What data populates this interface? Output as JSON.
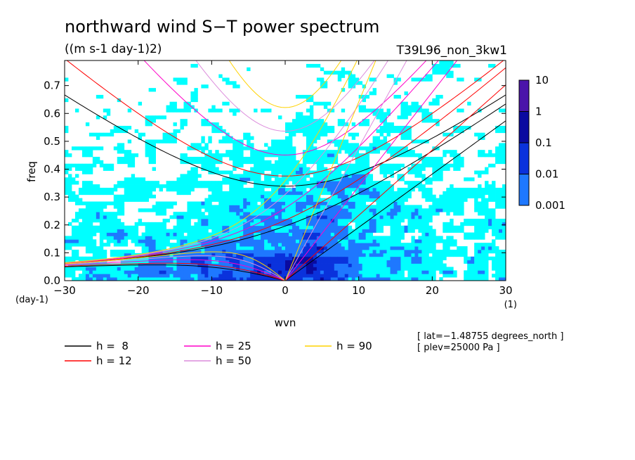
{
  "chart_data": {
    "type": "heatmap",
    "title": "northward wind S−T power spectrum",
    "subtitle": "((m s-1 day-1)2)",
    "run_label": "T39L96_non_3kw1",
    "xlabel": "wvn",
    "ylabel": "freq",
    "x_unit": "(1)",
    "y_unit": "(day-1)",
    "xlim": [
      -30,
      30
    ],
    "ylim": [
      0,
      0.79
    ],
    "x_ticks": [
      -30,
      -20,
      -10,
      0,
      10,
      20,
      30
    ],
    "y_ticks": [
      0.0,
      0.1,
      0.2,
      0.3,
      0.4,
      0.5,
      0.6,
      0.7
    ],
    "x_tick_labels": [
      "−30",
      "−20",
      "−10",
      "0",
      "10",
      "20",
      "30"
    ],
    "y_tick_labels": [
      "0.0",
      "0.1",
      "0.2",
      "0.3",
      "0.4",
      "0.5",
      "0.6",
      "0.7"
    ],
    "colorbar": {
      "labels": [
        "10",
        "1",
        "0.1",
        "0.01",
        "0.001"
      ],
      "levels": [
        0.001,
        0.01,
        0.1,
        1,
        10
      ],
      "colors": [
        "#00ffff",
        "#1e78ff",
        "#0a32dc",
        "#0a0aa0",
        "#4b14aa"
      ]
    },
    "dispersion_curves": [
      {
        "label": "h =  8",
        "h": 8,
        "color": "#000000"
      },
      {
        "label": "h = 12",
        "h": 12,
        "color": "#ff0000"
      },
      {
        "label": "h = 25",
        "h": 25,
        "color": "#ff00c8"
      },
      {
        "label": "h = 50",
        "h": 50,
        "color": "#dc8cdc"
      },
      {
        "label": "h = 90",
        "h": 90,
        "color": "#ffd200"
      }
    ],
    "annotations": [
      "[ lat=−1.48755 degrees_north ]",
      "[ plev=25000 Pa ]"
    ],
    "grid": false,
    "legend_placement": "bottom-left"
  }
}
